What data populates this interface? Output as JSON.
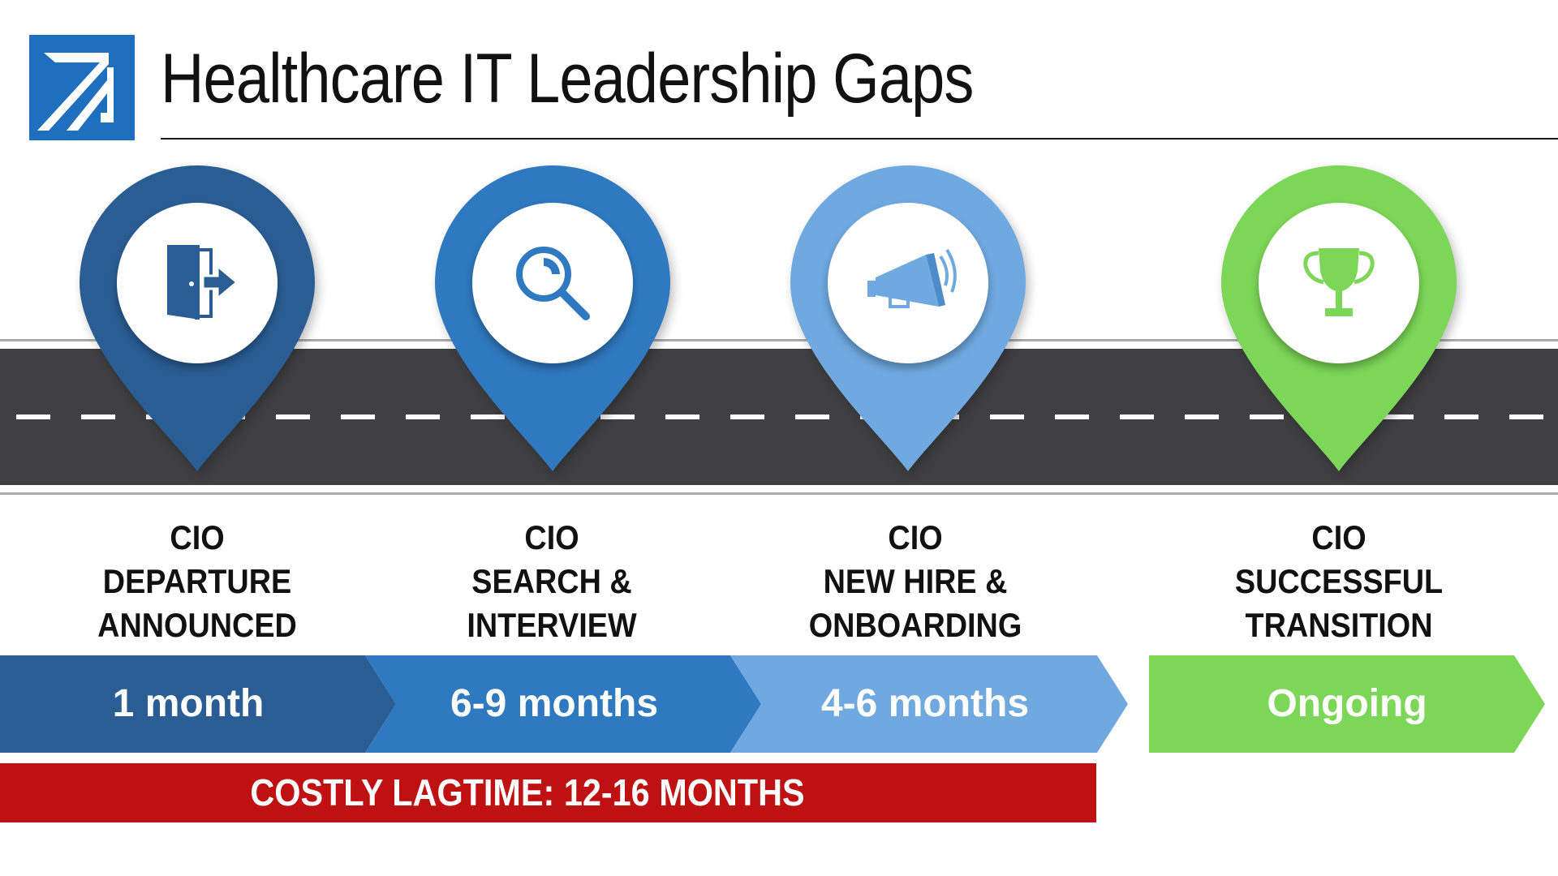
{
  "header": {
    "title": "Healthcare IT Leadership Gaps",
    "logo_icon": "diagonal-arrow-logo",
    "logo_color": "#1e6fbd"
  },
  "stages": [
    {
      "icon": "door-exit-icon",
      "color": "#2a5d94",
      "label_lines": [
        "CIO",
        "DEPARTURE",
        "ANNOUNCED"
      ],
      "duration": "1 month"
    },
    {
      "icon": "magnifying-glass-icon",
      "color": "#2f79c0",
      "label_lines": [
        "CIO",
        "SEARCH &",
        "INTERVIEW"
      ],
      "duration": "6-9 months"
    },
    {
      "icon": "megaphone-icon",
      "color": "#6fa9e0",
      "label_lines": [
        "CIO",
        "NEW HIRE &",
        "ONBOARDING"
      ],
      "duration": "4-6 months"
    },
    {
      "icon": "trophy-icon",
      "color": "#7cd657",
      "label_lines": [
        "CIO",
        "SUCCESSFUL",
        "TRANSITION"
      ],
      "duration": "Ongoing"
    }
  ],
  "footer": {
    "lagtime_text": "COSTLY LAGTIME: 12-16 MONTHS",
    "lagtime_color": "#bf1111"
  },
  "colors": {
    "road": "#404042",
    "road_edge": "#aaaaaa",
    "lane_marking": "#ffffff"
  }
}
